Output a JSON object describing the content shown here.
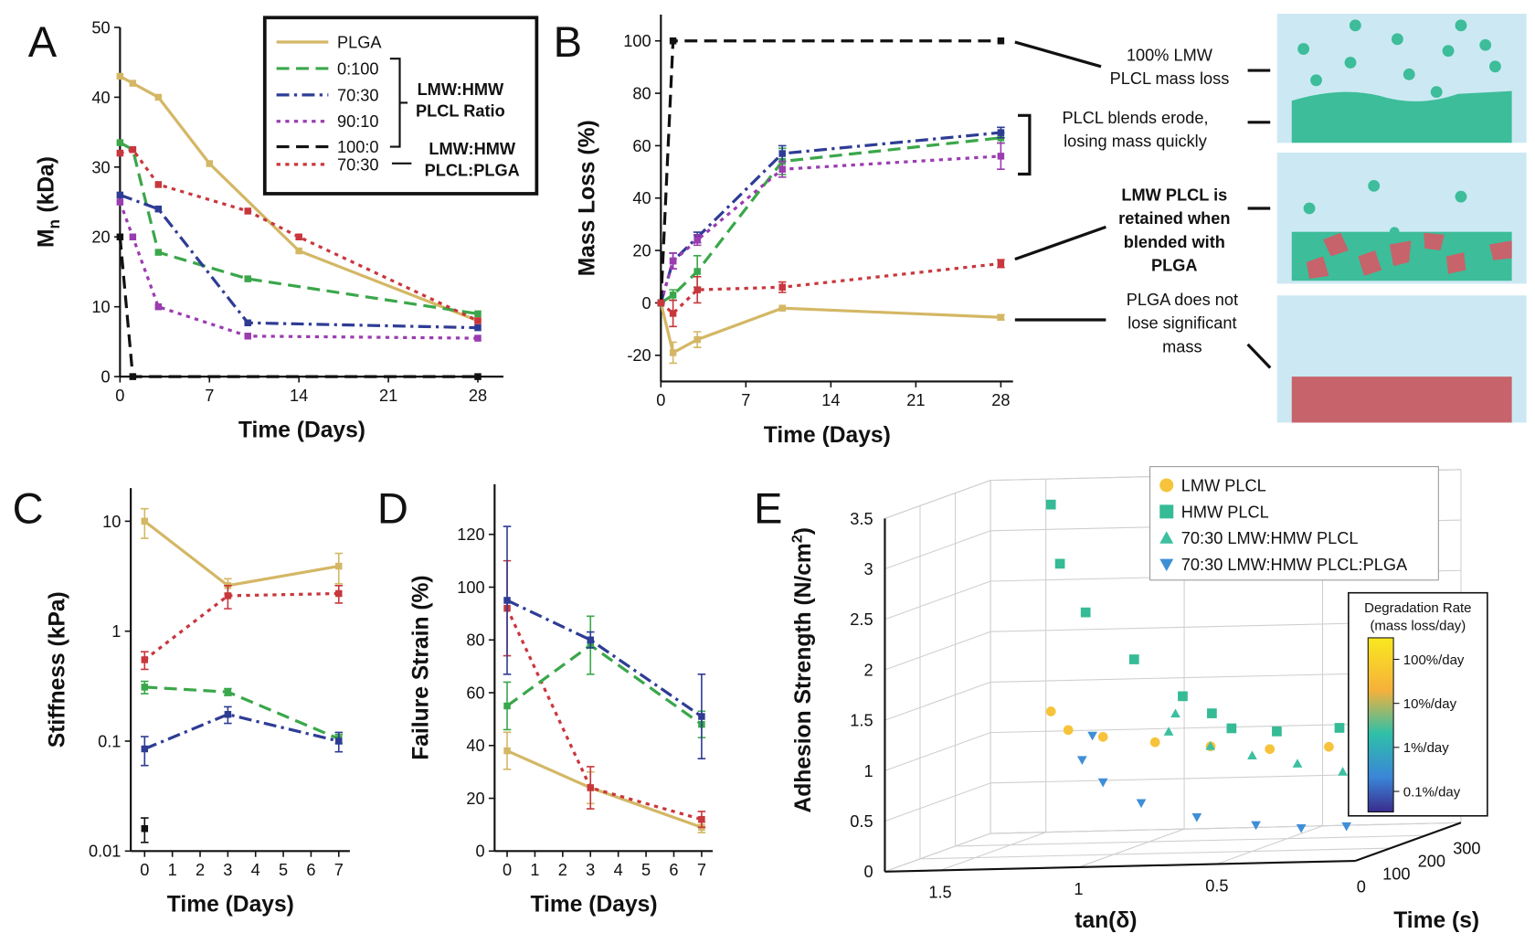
{
  "chart_data": [
    {
      "type": "line",
      "panel": "A",
      "xlabel": "Time (Days)",
      "ylabel": "M",
      "ylabel_subscript": "n",
      "ylabel_unit": "(kDa)",
      "xlim": [
        0,
        30
      ],
      "xticks": [
        0,
        7,
        14,
        21,
        28
      ],
      "ylim": [
        0,
        50
      ],
      "yticks": [
        0,
        10,
        20,
        30,
        40,
        50
      ],
      "series": [
        {
          "name": "PLGA",
          "color": "#d4b765",
          "dash": "solid",
          "x": [
            0,
            1,
            3,
            7,
            14,
            28
          ],
          "values": [
            43,
            42,
            40,
            30.5,
            18,
            8
          ]
        },
        {
          "name": "0:100",
          "color": "#3aa74a",
          "dash": "dashed",
          "x": [
            0,
            1,
            3,
            10,
            28
          ],
          "values": [
            33.5,
            32.5,
            17.8,
            14,
            9
          ]
        },
        {
          "name": "70:30",
          "color": "#2e3c95",
          "dash": "dashdot",
          "x": [
            0,
            3,
            10,
            28
          ],
          "values": [
            26,
            24,
            7.7,
            7
          ]
        },
        {
          "name": "90:10",
          "color": "#9b3cb0",
          "dash": "dotted",
          "x": [
            0,
            1,
            3,
            10,
            28
          ],
          "values": [
            25,
            20,
            10,
            5.8,
            5.5
          ]
        },
        {
          "name": "100:0",
          "color": "#111111",
          "dash": "dashed",
          "x": [
            0,
            1,
            28
          ],
          "values": [
            20,
            0,
            0
          ]
        },
        {
          "name": "70:30",
          "color": "#c8373d",
          "dash": "dotted",
          "x": [
            0,
            1,
            3,
            10,
            14,
            28
          ],
          "values": [
            32,
            32.5,
            27.5,
            23.7,
            20,
            8
          ]
        }
      ],
      "legend_groups": [
        {
          "lines": [
            "LMW:HMW",
            "PLCL Ratio"
          ]
        },
        {
          "lines": [
            "LMW:HMW",
            "PLCL:PLGA"
          ]
        }
      ]
    },
    {
      "type": "line",
      "panel": "B",
      "xlabel": "Time (Days)",
      "ylabel": "Mass Loss (%)",
      "xlim": [
        0,
        29
      ],
      "xticks": [
        0,
        7,
        14,
        21,
        28
      ],
      "ylim": [
        -30,
        110
      ],
      "yticks": [
        -20,
        0,
        20,
        40,
        60,
        80,
        100
      ],
      "series": [
        {
          "color": "#d4b765",
          "dash": "solid",
          "x": [
            0,
            1,
            3,
            10,
            28
          ],
          "values": [
            0,
            -19,
            -14,
            -2,
            -5.5
          ],
          "errors": [
            0,
            4,
            3,
            0,
            1
          ]
        },
        {
          "color": "#3aa74a",
          "dash": "dashed",
          "x": [
            0,
            1,
            3,
            10,
            28
          ],
          "values": [
            0,
            3,
            12,
            54,
            63
          ],
          "errors": [
            0,
            2,
            6,
            5,
            2
          ]
        },
        {
          "color": "#2e3c95",
          "dash": "dashdot",
          "x": [
            0,
            1,
            3,
            10,
            28
          ],
          "values": [
            0,
            16,
            25,
            57,
            65
          ],
          "errors": [
            0,
            3,
            2,
            3,
            2
          ]
        },
        {
          "color": "#9b3cb0",
          "dash": "dotted",
          "x": [
            0,
            1,
            3,
            10,
            28
          ],
          "values": [
            0,
            16,
            24,
            51,
            56
          ],
          "errors": [
            0,
            3,
            2,
            3,
            5
          ]
        },
        {
          "color": "#111111",
          "dash": "dashed",
          "x": [
            0,
            1,
            28
          ],
          "values": [
            0,
            100,
            100
          ]
        },
        {
          "color": "#c8373d",
          "dash": "dotted",
          "x": [
            0,
            1,
            3,
            10,
            28
          ],
          "values": [
            0,
            -4,
            5,
            6,
            15
          ],
          "errors": [
            0,
            5,
            5,
            2,
            1.5
          ]
        }
      ],
      "annotations": [
        {
          "lines": [
            "100% LMW",
            "PLCL mass loss"
          ]
        },
        {
          "lines": [
            "PLCL blends erode,",
            "losing mass quickly"
          ]
        },
        {
          "lines": [
            "LMW PLCL is",
            "retained when",
            "blended with",
            "PLGA"
          ],
          "bold": true
        },
        {
          "lines": [
            "PLGA does not",
            "lose significant",
            "mass"
          ]
        }
      ]
    },
    {
      "type": "line",
      "panel": "C",
      "xlabel": "Time (Days)",
      "ylabel": "Stiffness (kPa)",
      "yscale": "log",
      "xlim": [
        -0.5,
        7.4
      ],
      "xticks": [
        0,
        1,
        2,
        3,
        4,
        5,
        6,
        7
      ],
      "ylim": [
        0.01,
        20
      ],
      "yticks": [
        0.01,
        0.1,
        1,
        10
      ],
      "series": [
        {
          "color": "#d4b765",
          "dash": "solid",
          "x": [
            0,
            3,
            7
          ],
          "values": [
            10,
            2.6,
            3.9
          ],
          "errors": [
            3,
            0.4,
            1.2
          ]
        },
        {
          "color": "#c8373d",
          "dash": "dotted",
          "x": [
            0,
            3,
            7
          ],
          "values": [
            0.55,
            2.1,
            2.2
          ],
          "errors": [
            0.1,
            0.5,
            0.4
          ]
        },
        {
          "color": "#3aa74a",
          "dash": "dashed",
          "x": [
            0,
            3,
            7
          ],
          "values": [
            0.31,
            0.28,
            0.105
          ],
          "errors": [
            0.04,
            0.02,
            0.01
          ]
        },
        {
          "color": "#2e3c95",
          "dash": "dashdot",
          "x": [
            0,
            3,
            7
          ],
          "values": [
            0.085,
            0.175,
            0.1
          ],
          "errors": [
            0.025,
            0.03,
            0.02
          ]
        },
        {
          "color": "#111111",
          "dash": "solid",
          "x": [
            0
          ],
          "values": [
            0.016
          ],
          "errors": [
            0.004
          ]
        }
      ]
    },
    {
      "type": "line",
      "panel": "D",
      "xlabel": "Time (Days)",
      "ylabel": "Failure Strain (%)",
      "xlim": [
        -0.45,
        7.4
      ],
      "xticks": [
        0,
        1,
        2,
        3,
        4,
        5,
        6,
        7
      ],
      "ylim": [
        0,
        139
      ],
      "yticks": [
        0,
        20,
        40,
        60,
        80,
        100,
        120
      ],
      "series": [
        {
          "color": "#d4b765",
          "dash": "solid",
          "x": [
            0,
            3,
            7
          ],
          "values": [
            38,
            24,
            9
          ],
          "errors": [
            7,
            6,
            2
          ]
        },
        {
          "color": "#c8373d",
          "dash": "dotted",
          "x": [
            0,
            3,
            7
          ],
          "values": [
            92,
            24,
            12
          ],
          "errors": [
            18,
            8,
            3
          ]
        },
        {
          "color": "#3aa74a",
          "dash": "dashed",
          "x": [
            0,
            3,
            7
          ],
          "values": [
            55,
            78,
            48
          ],
          "errors": [
            9,
            11,
            5
          ]
        },
        {
          "color": "#2e3c95",
          "dash": "dashdot",
          "x": [
            0,
            3,
            7
          ],
          "values": [
            95,
            80,
            51
          ],
          "errors": [
            28,
            3,
            16
          ]
        }
      ]
    },
    {
      "type": "scatter3d",
      "panel": "E",
      "xlabel": "tan(δ)",
      "zlabel": "Time (s)",
      "ylabel": "Adhesion Strength (N/cm",
      "ylabel_superscript": "2",
      "ylabel_end": ")",
      "xlim": [
        0,
        1.7
      ],
      "xticks": [
        0.5,
        1,
        1.5
      ],
      "zlim": [
        0,
        300
      ],
      "zticks": [
        0,
        100,
        200,
        300
      ],
      "ylim": [
        0,
        3.5
      ],
      "yticks": [
        0,
        0.5,
        1,
        1.5,
        2,
        2.5,
        3,
        3.5
      ],
      "series": [
        {
          "name": "LMW PLCL",
          "color": "#f6c33b",
          "marker": "circle",
          "x": [
            1.1,
            1.05,
            0.95,
            0.8,
            0.65,
            0.5,
            0.35,
            0.2,
            0.1
          ],
          "z": [
            0,
            10,
            30,
            60,
            100,
            150,
            200,
            250,
            300
          ],
          "values": [
            1.55,
            1.35,
            1.25,
            1.15,
            1.05,
            0.95,
            0.9,
            0.85,
            0.8
          ]
        },
        {
          "name": "HMW PLCL",
          "color": "#35bb96",
          "marker": "square",
          "x": [
            1.1,
            1.08,
            1.0,
            0.85,
            0.7,
            0.62,
            0.6,
            0.5,
            0.35,
            0.25
          ],
          "z": [
            0,
            10,
            20,
            40,
            60,
            80,
            120,
            170,
            230,
            300
          ],
          "values": [
            3.6,
            3.0,
            2.5,
            2.0,
            1.6,
            1.4,
            1.2,
            1.1,
            1.05,
            1.0
          ]
        },
        {
          "name": "70:30 LMW:HMW PLCL",
          "color": "#3cc0a0",
          "marker": "triangle-up",
          "x": [
            0.65,
            0.7,
            0.6,
            0.5,
            0.4,
            0.3,
            0.2,
            0.1
          ],
          "z": [
            0,
            20,
            60,
            100,
            150,
            200,
            250,
            300
          ],
          "values": [
            1.5,
            1.3,
            1.1,
            0.95,
            0.8,
            0.65,
            0.55,
            0.45
          ]
        },
        {
          "name": "70:30 LMW:HMW PLCL:PLGA",
          "color": "#3f8fd6",
          "marker": "triangle-down",
          "x": [
            0.95,
            1.0,
            0.95,
            0.85,
            0.7,
            0.55,
            0.45,
            0.35
          ],
          "z": [
            0,
            10,
            30,
            60,
            100,
            150,
            200,
            250
          ],
          "values": [
            1.3,
            1.05,
            0.8,
            0.55,
            0.35,
            0.2,
            0.1,
            0.05
          ]
        }
      ],
      "colorbar": {
        "title": "Degradation Rate",
        "subtitle": "(mass loss/day)",
        "labels": [
          "100%/day",
          "10%/day",
          "1%/day",
          "0.1%/day"
        ]
      }
    }
  ]
}
